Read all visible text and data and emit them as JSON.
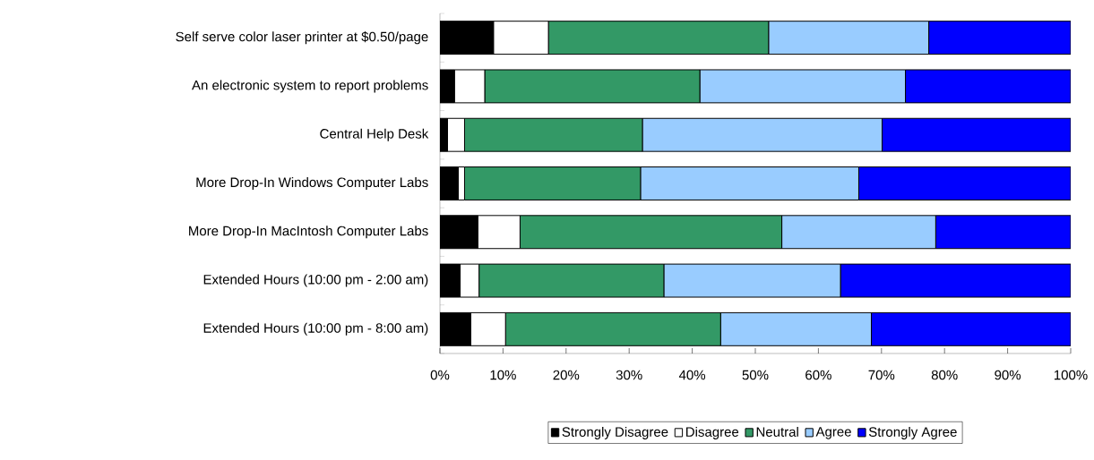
{
  "chart_data": {
    "type": "bar",
    "orientation": "horizontal",
    "stacked": true,
    "categories": [
      "Self serve color laser printer at $0.50/page",
      "An electronic system to report problems",
      "Central Help Desk",
      "More Drop-In Windows Computer Labs",
      "More Drop-In MacIntosh Computer Labs",
      "Extended Hours (10:00 pm - 2:00 am)",
      "Extended Hours (10:00 pm - 8:00 am)"
    ],
    "series": [
      {
        "name": "Strongly Disagree",
        "color": "#000000",
        "values": [
          8.5,
          2.3,
          1.2,
          2.9,
          6.0,
          3.2,
          4.9
        ]
      },
      {
        "name": "Disagree",
        "color": "#ffffff",
        "values": [
          8.7,
          4.8,
          2.7,
          1.0,
          6.7,
          3.0,
          5.5
        ]
      },
      {
        "name": "Neutral",
        "color": "#339966",
        "values": [
          34.9,
          34.1,
          28.2,
          27.9,
          41.5,
          29.3,
          34.1
        ]
      },
      {
        "name": "Agree",
        "color": "#99ccff",
        "values": [
          25.4,
          32.6,
          38.0,
          34.6,
          24.4,
          28.0,
          23.9
        ]
      },
      {
        "name": "Strongly Agree",
        "color": "#0000ff",
        "values": [
          22.5,
          26.2,
          29.9,
          33.6,
          21.4,
          36.5,
          31.6
        ]
      }
    ],
    "xlim": [
      0,
      100
    ],
    "xticks": [
      {
        "value": 0,
        "label": "0%"
      },
      {
        "value": 10,
        "label": "10%"
      },
      {
        "value": 20,
        "label": "20%"
      },
      {
        "value": 30,
        "label": "30%"
      },
      {
        "value": 40,
        "label": "40%"
      },
      {
        "value": 50,
        "label": "50%"
      },
      {
        "value": 60,
        "label": "60%"
      },
      {
        "value": 70,
        "label": "70%"
      },
      {
        "value": 80,
        "label": "80%"
      },
      {
        "value": 90,
        "label": "90%"
      },
      {
        "value": 100,
        "label": "100%"
      }
    ],
    "legend": "bottom",
    "grid": false
  }
}
